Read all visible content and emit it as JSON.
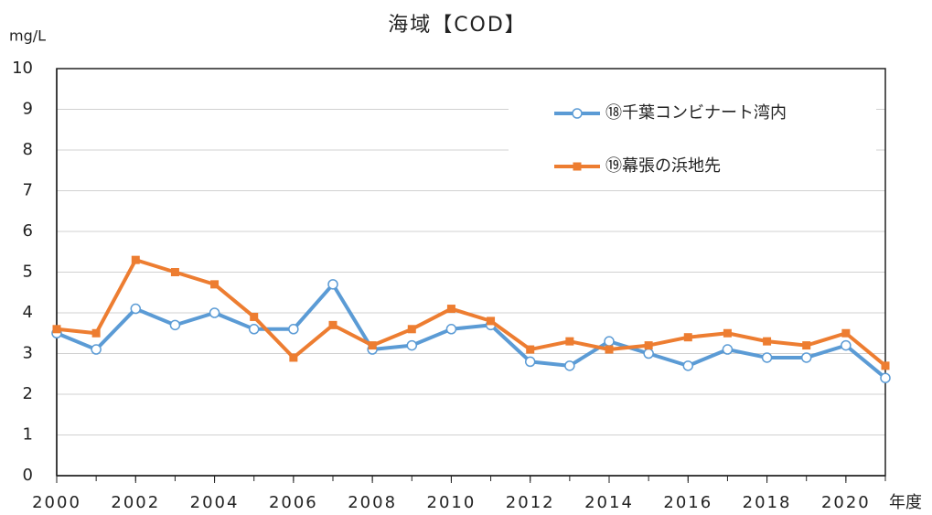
{
  "chart_data": {
    "type": "line",
    "title": "海域【COD】",
    "y_label": "mg/L",
    "x_label": "年度",
    "x": [
      2000,
      2001,
      2002,
      2003,
      2004,
      2005,
      2006,
      2007,
      2008,
      2009,
      2010,
      2011,
      2012,
      2013,
      2014,
      2015,
      2016,
      2017,
      2018,
      2019,
      2020,
      2021
    ],
    "series": [
      {
        "name": "⑱千葉コンビナート湾内",
        "color": "#5b9bd5",
        "marker": "circle",
        "values": [
          3.5,
          3.1,
          4.1,
          3.7,
          4.0,
          3.6,
          3.6,
          4.7,
          3.1,
          3.2,
          3.6,
          3.7,
          2.8,
          2.7,
          3.3,
          3.0,
          2.7,
          3.1,
          2.9,
          2.9,
          3.2,
          2.4
        ]
      },
      {
        "name": "⑲幕張の浜地先",
        "color": "#ed7d31",
        "marker": "square",
        "values": [
          3.6,
          3.5,
          5.3,
          5.0,
          4.7,
          3.9,
          2.9,
          3.7,
          3.2,
          3.6,
          4.1,
          3.8,
          3.1,
          3.3,
          3.1,
          3.2,
          3.4,
          3.5,
          3.3,
          3.2,
          3.5,
          2.7
        ]
      }
    ],
    "xlim": [
      2000,
      2021
    ],
    "xticks": [
      2000,
      2002,
      2004,
      2006,
      2008,
      2010,
      2012,
      2014,
      2016,
      2018,
      2020
    ],
    "ylim": [
      0,
      10
    ],
    "yticks": [
      0,
      1,
      2,
      3,
      4,
      5,
      6,
      7,
      8,
      9,
      10
    ],
    "grid": true,
    "legend": "upper right"
  }
}
